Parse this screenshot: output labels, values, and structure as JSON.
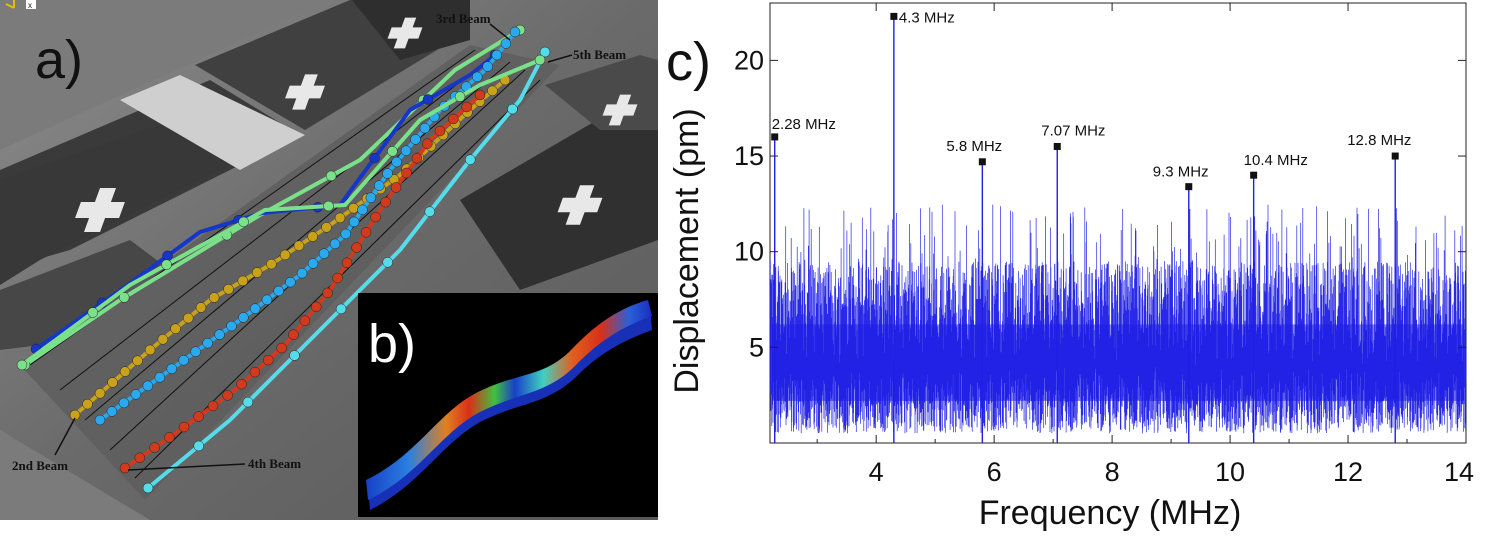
{
  "panels": {
    "a": {
      "label": "a)",
      "beam_labels": {
        "beam2": "2nd Beam",
        "beam3": "3rd Beam",
        "beam4": "4th Beam",
        "beam5": "5th Beam"
      },
      "axis_glyph": "x"
    },
    "b": {
      "label": "b)"
    },
    "c": {
      "label": "c)"
    }
  },
  "colors": {
    "spectrum": "#1e1ee6",
    "beam_dark_blue": "#1636c8",
    "beam_light_blue": "#2aa9ee",
    "beam_cyan": "#55dcea",
    "beam_green": "#7be08a",
    "beam_yellow": "#c9a21c",
    "beam_red": "#d23a1e"
  },
  "chart_data": {
    "type": "line",
    "title": "",
    "xlabel": "Frequency (MHz)",
    "ylabel": "Displacement (pm)",
    "xlim": [
      2.2,
      14
    ],
    "ylim": [
      0,
      23
    ],
    "xticks": [
      4,
      6,
      8,
      10,
      12,
      14
    ],
    "yticks": [
      5,
      10,
      15,
      20
    ],
    "noise": {
      "baseline_pm": 4.0,
      "typical_max_pm": 9.5,
      "occasional_max_pm": 12.5,
      "min_pm": 0.5
    },
    "peaks": [
      {
        "x": 2.28,
        "y": 16.0,
        "label": "2.28 MHz"
      },
      {
        "x": 4.3,
        "y": 22.3,
        "label": "4.3 MHz"
      },
      {
        "x": 5.8,
        "y": 14.7,
        "label": "5.8 MHz"
      },
      {
        "x": 7.07,
        "y": 15.5,
        "label": "7.07 MHz"
      },
      {
        "x": 9.3,
        "y": 13.4,
        "label": "9.3 MHz"
      },
      {
        "x": 10.4,
        "y": 14.0,
        "label": "10.4 MHz"
      },
      {
        "x": 12.8,
        "y": 15.0,
        "label": "12.8 MHz"
      }
    ]
  }
}
